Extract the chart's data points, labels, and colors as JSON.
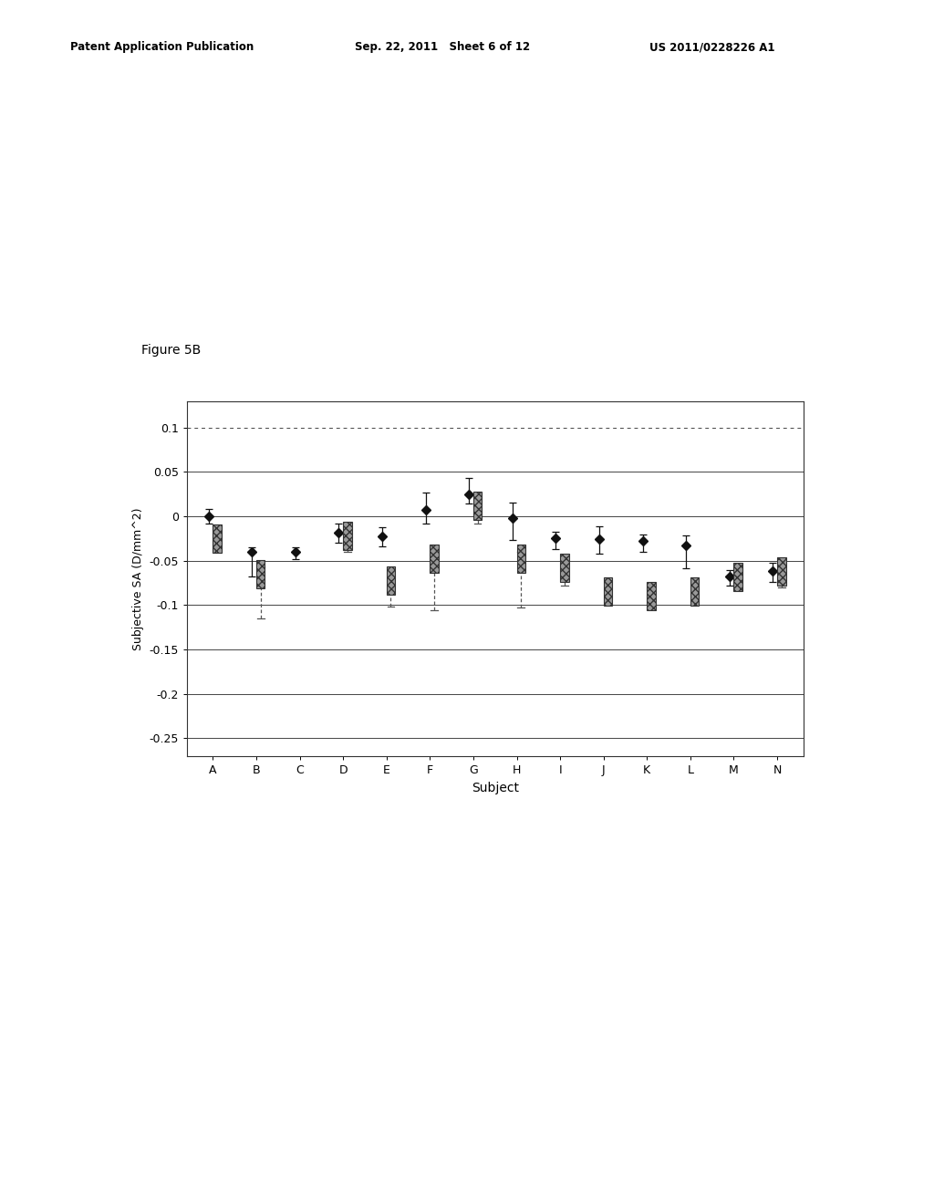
{
  "subjects": [
    "A",
    "B",
    "C",
    "D",
    "E",
    "F",
    "G",
    "H",
    "I",
    "J",
    "K",
    "L",
    "M",
    "N"
  ],
  "series1_values": [
    0.0,
    -0.04,
    -0.04,
    -0.018,
    -0.022,
    0.007,
    0.025,
    -0.002,
    -0.025,
    -0.026,
    -0.028,
    -0.033,
    -0.068,
    -0.062
  ],
  "series1_err_low": [
    0.008,
    0.028,
    0.008,
    0.012,
    0.012,
    0.015,
    0.01,
    0.025,
    0.012,
    0.016,
    0.012,
    0.025,
    0.01,
    0.012
  ],
  "series1_err_high": [
    0.008,
    0.005,
    0.005,
    0.01,
    0.01,
    0.02,
    0.018,
    0.018,
    0.008,
    0.015,
    0.008,
    0.012,
    0.008,
    0.01
  ],
  "series2_values": [
    -0.025,
    -0.065,
    null,
    -0.022,
    -0.072,
    -0.048,
    0.012,
    -0.048,
    -0.058,
    -0.085,
    -0.09,
    -0.085,
    -0.068,
    -0.062
  ],
  "series2_err_low": [
    0.012,
    0.05,
    null,
    0.018,
    0.03,
    0.058,
    0.02,
    0.055,
    0.02,
    0.015,
    0.008,
    0.014,
    0.012,
    0.018
  ],
  "series2_err_high": [
    0.015,
    0.008,
    null,
    0.008,
    0.008,
    0.008,
    0.003,
    0.008,
    0.008,
    0.008,
    0.012,
    0.008,
    0.008,
    0.008
  ],
  "xlabel": "Subject",
  "ylabel": "Subjective SA (D/mm^2)",
  "ylim": [
    -0.27,
    0.13
  ],
  "yticks": [
    0.1,
    0.05,
    0.0,
    -0.05,
    -0.1,
    -0.15,
    -0.2,
    -0.25
  ],
  "ytick_labels": [
    "0.1",
    "0.05",
    "0",
    "-0.05",
    "-0.1",
    "-0.15",
    "-0.2",
    "-0.25"
  ],
  "figure_label": "Figure 5B",
  "background_color": "#ffffff",
  "header_left": "Patent Application Publication",
  "header_mid": "Sep. 22, 2011   Sheet 6 of 12",
  "header_right": "US 2011/0228226 A1"
}
